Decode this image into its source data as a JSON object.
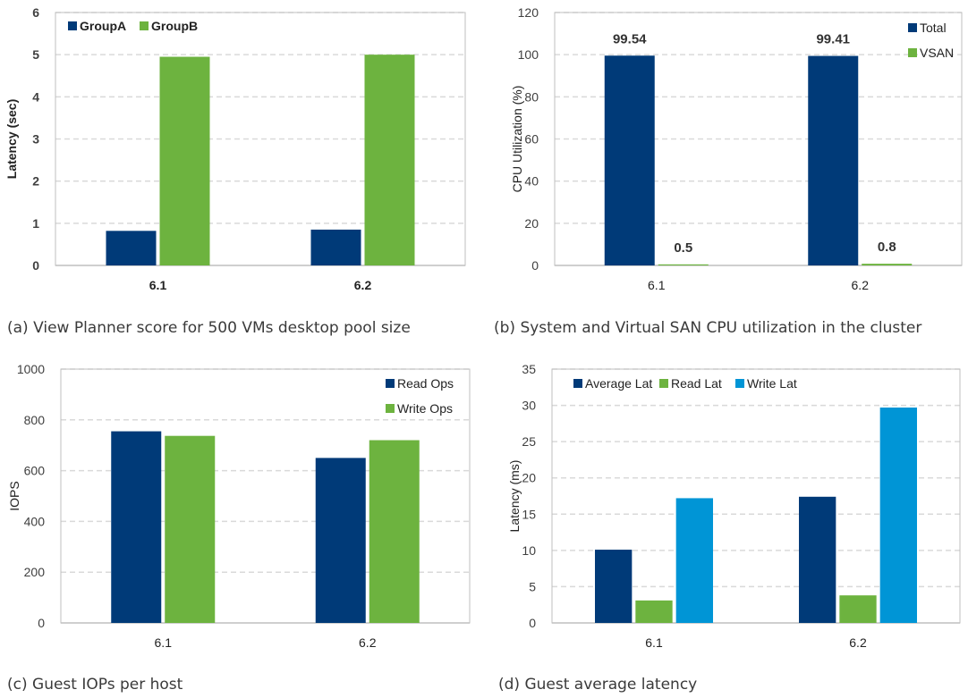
{
  "colors": {
    "navy": "#003a78",
    "green": "#6db33f",
    "blue": "#0095d6",
    "axis": "#bfbfbf",
    "grid": "#d9d9d9",
    "text": "#404040"
  },
  "chart_data": [
    {
      "id": "a",
      "type": "bar",
      "caption": "(a) View Planner score for 500 VMs desktop pool size",
      "categories": [
        "6.1",
        "6.2"
      ],
      "series": [
        {
          "name": "GroupA",
          "color": "#003a78",
          "values": [
            0.82,
            0.85
          ]
        },
        {
          "name": "GroupB",
          "color": "#6db33f",
          "values": [
            4.95,
            5.0
          ]
        }
      ],
      "ylabel": "Latency (sec)",
      "ylim": [
        0,
        6
      ],
      "yticks": [
        0,
        1,
        2,
        3,
        4,
        5,
        6
      ],
      "grid": true,
      "legend": "top-left",
      "bold_labels": true
    },
    {
      "id": "b",
      "type": "bar",
      "caption": "(b) System and Virtual SAN CPU utilization in the cluster",
      "categories": [
        "6.1",
        "6.2"
      ],
      "series": [
        {
          "name": "Total",
          "color": "#003a78",
          "values": [
            99.54,
            99.41
          ],
          "data_labels": [
            "99.54",
            "99.41"
          ]
        },
        {
          "name": "VSAN",
          "color": "#6db33f",
          "values": [
            0.5,
            0.8
          ],
          "data_labels": [
            "0.5",
            "0.8"
          ]
        }
      ],
      "ylabel": "CPU Utilization (%)",
      "ylim": [
        0,
        120
      ],
      "yticks": [
        0,
        20,
        40,
        60,
        80,
        100,
        120
      ],
      "grid": true,
      "legend": "top-right"
    },
    {
      "id": "c",
      "type": "bar",
      "caption": "(c) Guest IOPs per host",
      "categories": [
        "6.1",
        "6.2"
      ],
      "series": [
        {
          "name": "Read Ops",
          "color": "#003a78",
          "values": [
            755,
            650
          ]
        },
        {
          "name": "Write Ops",
          "color": "#6db33f",
          "values": [
            737,
            720
          ]
        }
      ],
      "ylabel": "IOPS",
      "ylim": [
        0,
        1000
      ],
      "yticks": [
        0,
        200,
        400,
        600,
        800,
        1000
      ],
      "grid": true,
      "legend": "top-right"
    },
    {
      "id": "d",
      "type": "bar",
      "caption": "(d) Guest average latency",
      "categories": [
        "6.1",
        "6.2"
      ],
      "series": [
        {
          "name": "Average Lat",
          "color": "#003a78",
          "values": [
            10.1,
            17.4
          ]
        },
        {
          "name": "Read Lat",
          "color": "#6db33f",
          "values": [
            3.1,
            3.8
          ]
        },
        {
          "name": "Write Lat",
          "color": "#0095d6",
          "values": [
            17.2,
            29.7
          ]
        }
      ],
      "ylabel": "Latency (ms)",
      "ylim": [
        0,
        35
      ],
      "yticks": [
        0,
        5,
        10,
        15,
        20,
        25,
        30,
        35
      ],
      "grid": true,
      "legend": "top-left"
    }
  ]
}
